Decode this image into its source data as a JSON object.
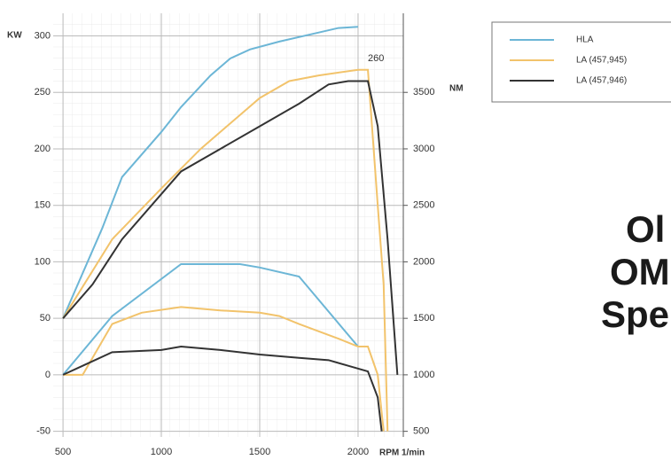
{
  "chart_data": {
    "type": "line",
    "x_label": "RPM 1/min",
    "y_label": "KW",
    "y2_label": "NM",
    "annotation": "260",
    "side_text": [
      "Ol",
      "OM",
      "Spe"
    ],
    "xlim": [
      450,
      2230
    ],
    "xticks": [
      500,
      1000,
      1500,
      2000
    ],
    "ylim": [
      -55,
      320
    ],
    "yticks": [
      -50,
      0,
      50,
      100,
      150,
      200,
      250,
      300
    ],
    "y2lim": [
      450,
      4200
    ],
    "y2ticks": [
      500,
      1000,
      1500,
      2000,
      2500,
      3000,
      3500
    ],
    "grid": true,
    "legend": "upper right",
    "series": [
      {
        "name": "HLA",
        "color": "#6cb6d6",
        "torque": {
          "axis": "y2",
          "x": [
            500,
            700,
            800,
            1000,
            1100,
            1250,
            1350,
            1450,
            1600,
            1800,
            1900,
            2000
          ],
          "values": [
            1500,
            2300,
            2750,
            3150,
            3370,
            3650,
            3800,
            3880,
            3950,
            4030,
            4070,
            4080
          ]
        },
        "power": {
          "axis": "y",
          "x": [
            500,
            750,
            1100,
            1400,
            1500,
            1700,
            2000
          ],
          "values": [
            0,
            52,
            98,
            98,
            95,
            87,
            25
          ]
        }
      },
      {
        "name": "LA (457,945)",
        "color": "#f2c36b",
        "torque": {
          "axis": "y2",
          "x": [
            500,
            750,
            1000,
            1200,
            1500,
            1650,
            1800,
            2000,
            2050,
            2100,
            2130,
            2150
          ],
          "values": [
            1500,
            2200,
            2650,
            3000,
            3450,
            3600,
            3650,
            3700,
            3700,
            2500,
            1800,
            500
          ]
        },
        "power": {
          "axis": "y",
          "x": [
            500,
            600,
            750,
            900,
            1100,
            1300,
            1500,
            1600,
            1700,
            1900,
            2000,
            2050,
            2100,
            2130
          ],
          "values": [
            0,
            0,
            45,
            55,
            60,
            57,
            55,
            52,
            45,
            32,
            25,
            25,
            0,
            -50
          ]
        }
      },
      {
        "name": "LA (457,946)",
        "color": "#333333",
        "torque": {
          "axis": "y2",
          "x": [
            500,
            650,
            800,
            1000,
            1100,
            1300,
            1500,
            1700,
            1850,
            1950,
            2050,
            2100,
            2150,
            2200
          ],
          "values": [
            1500,
            1800,
            2200,
            2600,
            2800,
            3000,
            3200,
            3400,
            3570,
            3600,
            3600,
            3200,
            2200,
            1000
          ]
        },
        "power": {
          "axis": "y",
          "x": [
            500,
            600,
            750,
            1000,
            1100,
            1300,
            1500,
            1700,
            1850,
            1950,
            2050,
            2100,
            2120
          ],
          "values": [
            0,
            8,
            20,
            22,
            25,
            22,
            18,
            15,
            13,
            8,
            3,
            -20,
            -50
          ]
        }
      }
    ]
  }
}
